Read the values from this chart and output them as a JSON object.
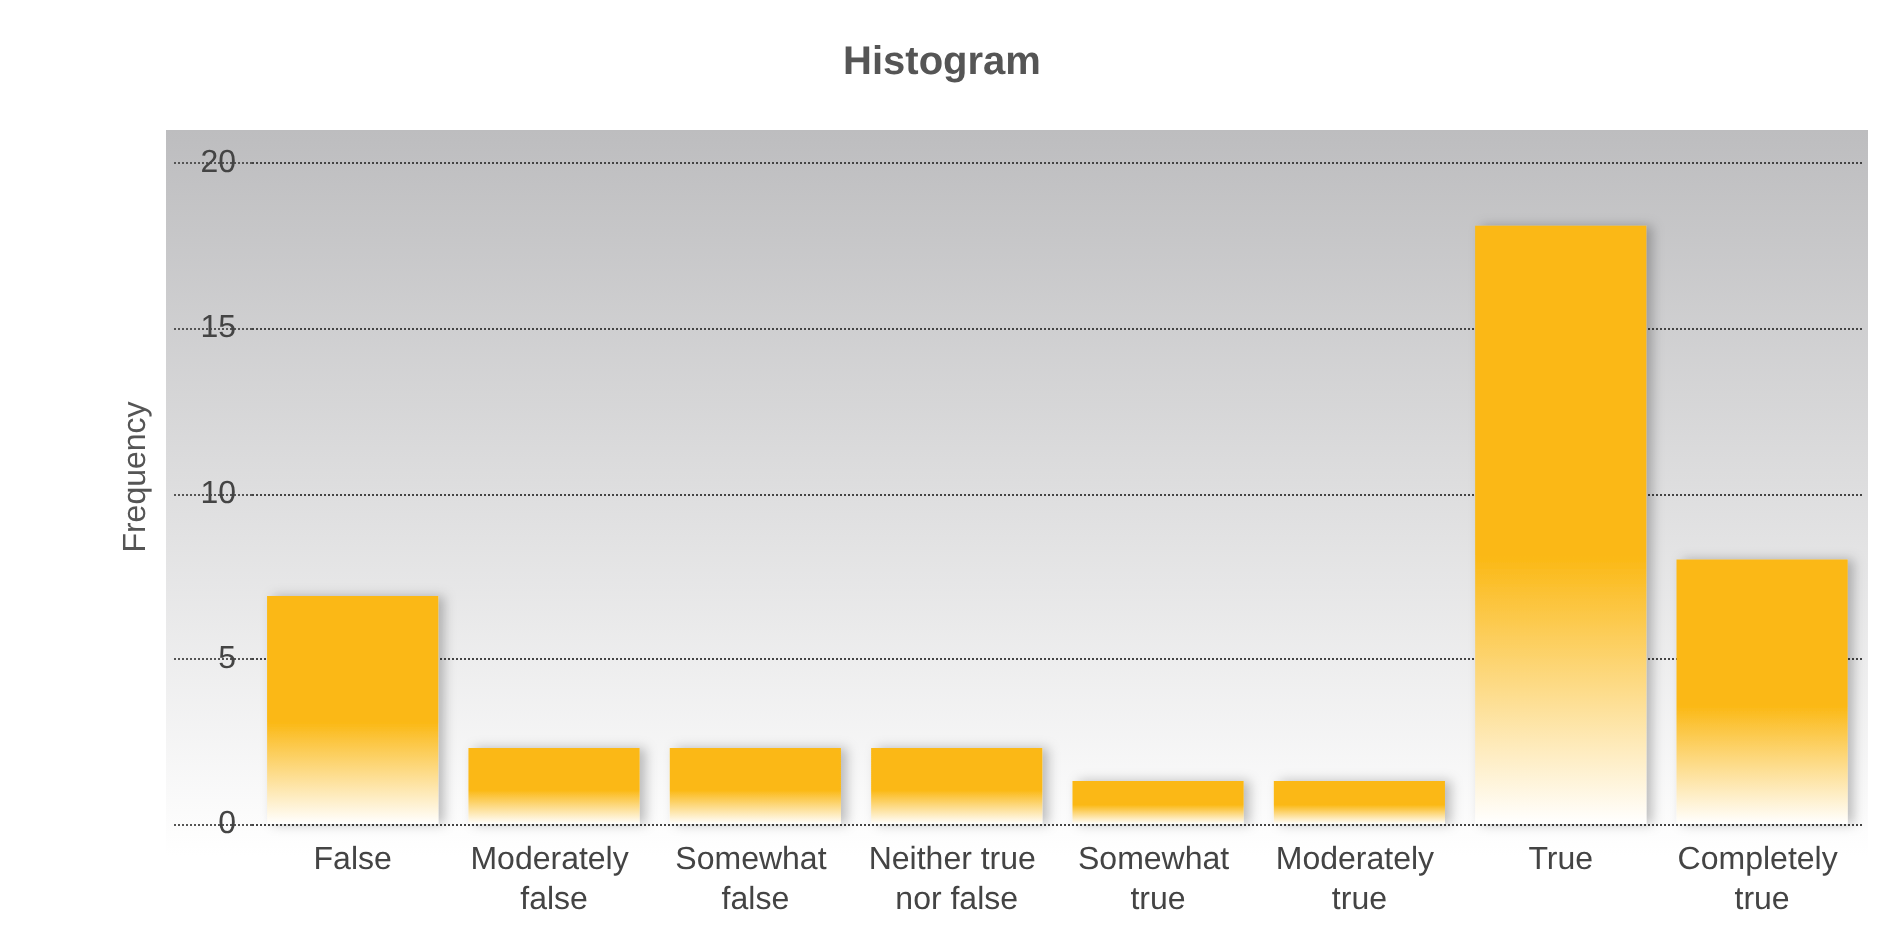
{
  "chart_data": {
    "type": "bar",
    "title": "Histogram",
    "ylabel": "Frequency",
    "categories": [
      "False",
      "Moderately false",
      "Somewhat false",
      "Neither true nor false",
      "Somewhat true",
      "Moderately true",
      "True",
      "Completely true"
    ],
    "values": [
      6.9,
      2.3,
      2.3,
      2.3,
      1.3,
      1.3,
      18.1,
      8
    ],
    "color": "#fbb813",
    "ylim": [
      0,
      21
    ],
    "yticks": [
      0,
      5,
      10,
      15,
      20
    ],
    "grid": "y"
  }
}
